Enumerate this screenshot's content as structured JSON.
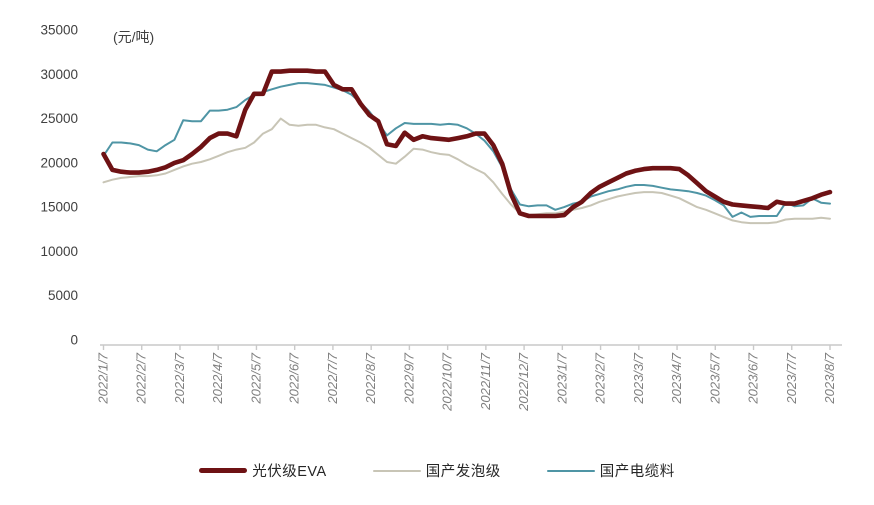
{
  "chart_data": {
    "type": "line",
    "title": "",
    "unit_label": "(元/吨)",
    "grid": false,
    "legend_position": "bottom",
    "ylim": [
      0,
      35000
    ],
    "y_ticks": [
      35000,
      30000,
      25000,
      20000,
      15000,
      10000,
      5000,
      0
    ],
    "x_tick_labels": [
      "2022/1/7",
      "2022/2/7",
      "2022/3/7",
      "2022/4/7",
      "2022/5/7",
      "2022/6/7",
      "2022/7/7",
      "2022/8/7",
      "2022/9/7",
      "2022/10/7",
      "2022/11/7",
      "2022/12/7",
      "2023/1/7",
      "2023/2/7",
      "2023/3/7",
      "2023/4/7",
      "2023/5/7",
      "2023/6/7",
      "2023/7/7",
      "2023/8/7"
    ],
    "x_frequency": "weekly",
    "axis_color": "#c9c9c9",
    "y_label_color": "#404040",
    "x_label_color": "#7f7f7f",
    "series": [
      {
        "name": "光伏级EVA",
        "key": "pv-eva",
        "color": "#6e1214",
        "width": 4.6,
        "values": [
          21000,
          19200,
          19000,
          18900,
          18900,
          19000,
          19200,
          19500,
          20000,
          20300,
          21000,
          21800,
          22800,
          23300,
          23300,
          23000,
          26000,
          27800,
          27800,
          30300,
          30300,
          30400,
          30400,
          30400,
          30300,
          30300,
          28800,
          28300,
          28300,
          26700,
          25400,
          24700,
          22100,
          21900,
          23400,
          22600,
          23000,
          22800,
          22700,
          22600,
          22800,
          23000,
          23300,
          23300,
          22000,
          19900,
          16500,
          14300,
          14000,
          14000,
          14000,
          14000,
          14100,
          15000,
          15600,
          16600,
          17300,
          17800,
          18300,
          18800,
          19100,
          19300,
          19400,
          19400,
          19400,
          19300,
          18600,
          17700,
          16800,
          16200,
          15600,
          15300,
          15200,
          15100,
          15000,
          14900,
          15600,
          15400,
          15400,
          15700,
          16000,
          16400,
          16700
        ]
      },
      {
        "name": "国产发泡级",
        "key": "domestic-foaming-grade",
        "color": "#c8c5b6",
        "width": 2,
        "values": [
          17800,
          18100,
          18300,
          18400,
          18500,
          18500,
          18600,
          18800,
          19200,
          19600,
          19900,
          20100,
          20400,
          20800,
          21200,
          21500,
          21700,
          22300,
          23300,
          23800,
          25000,
          24300,
          24200,
          24300,
          24300,
          24000,
          23800,
          23300,
          22800,
          22300,
          21700,
          20900,
          20100,
          19900,
          20700,
          21600,
          21500,
          21200,
          21000,
          20900,
          20400,
          19800,
          19300,
          18800,
          17800,
          16500,
          15300,
          14300,
          14100,
          14200,
          14300,
          14300,
          14500,
          14700,
          14900,
          15200,
          15600,
          15900,
          16200,
          16400,
          16600,
          16700,
          16700,
          16600,
          16300,
          16000,
          15500,
          15000,
          14700,
          14300,
          13900,
          13500,
          13300,
          13200,
          13200,
          13200,
          13300,
          13600,
          13700,
          13700,
          13700,
          13800,
          13700
        ]
      },
      {
        "name": "国产电缆料",
        "key": "domestic-cable-material",
        "color": "#4f95a5",
        "width": 2,
        "values": [
          20800,
          22300,
          22300,
          22200,
          22000,
          21500,
          21300,
          22000,
          22600,
          24800,
          24700,
          24700,
          25900,
          25900,
          26000,
          26300,
          27100,
          27700,
          28000,
          28300,
          28600,
          28800,
          29000,
          29000,
          28900,
          28800,
          28500,
          28200,
          27700,
          26800,
          25800,
          24500,
          23100,
          23900,
          24500,
          24400,
          24400,
          24400,
          24300,
          24400,
          24300,
          23900,
          23300,
          22500,
          21300,
          19500,
          17000,
          15300,
          15100,
          15200,
          15200,
          14700,
          15000,
          15400,
          15600,
          16200,
          16500,
          16800,
          17000,
          17300,
          17500,
          17500,
          17400,
          17200,
          17000,
          16900,
          16800,
          16600,
          16300,
          15800,
          15200,
          13900,
          14400,
          13900,
          14000,
          14000,
          14000,
          15500,
          15100,
          15200,
          16000,
          15500,
          15400
        ]
      }
    ]
  }
}
